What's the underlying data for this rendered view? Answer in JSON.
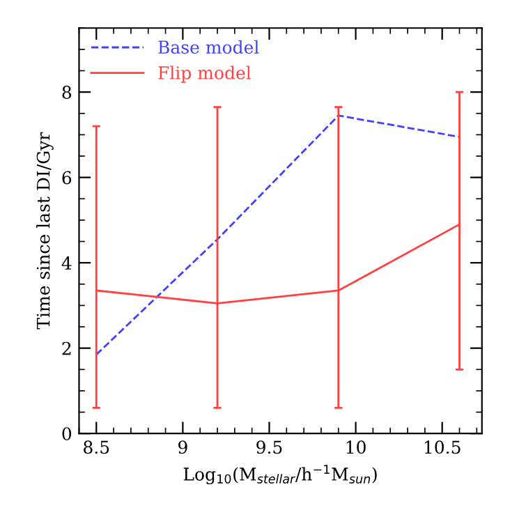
{
  "chart_data": {
    "type": "line",
    "xlabel": "Log$_{10}$(M$_{stellar}$/h$^{−1}$M$_{sun}$)",
    "ylabel": "Time since last DI/Gyr",
    "x": [
      8.5,
      9.2,
      9.9,
      10.6
    ],
    "series": [
      {
        "name": "Base model",
        "color": "#4040ff",
        "line_style": "dashed",
        "values": [
          1.85,
          4.55,
          7.45,
          6.95
        ]
      },
      {
        "name": "Flip model",
        "color": "#ff4040",
        "line_style": "solid",
        "values": [
          3.35,
          3.05,
          3.35,
          4.9
        ],
        "errors": [
          [
            0.6,
            7.2
          ],
          [
            0.6,
            7.65
          ],
          [
            0.6,
            7.65
          ],
          [
            1.5,
            8.0
          ]
        ]
      }
    ],
    "xlim": [
      8.4,
      10.73
    ],
    "ylim": [
      0,
      9.5
    ],
    "xticks": [
      8.5,
      9,
      9.5,
      10,
      10.5
    ],
    "yticks": [
      0,
      2,
      4,
      6,
      8
    ],
    "grid": false,
    "legend": "top left",
    "marker": "none"
  }
}
